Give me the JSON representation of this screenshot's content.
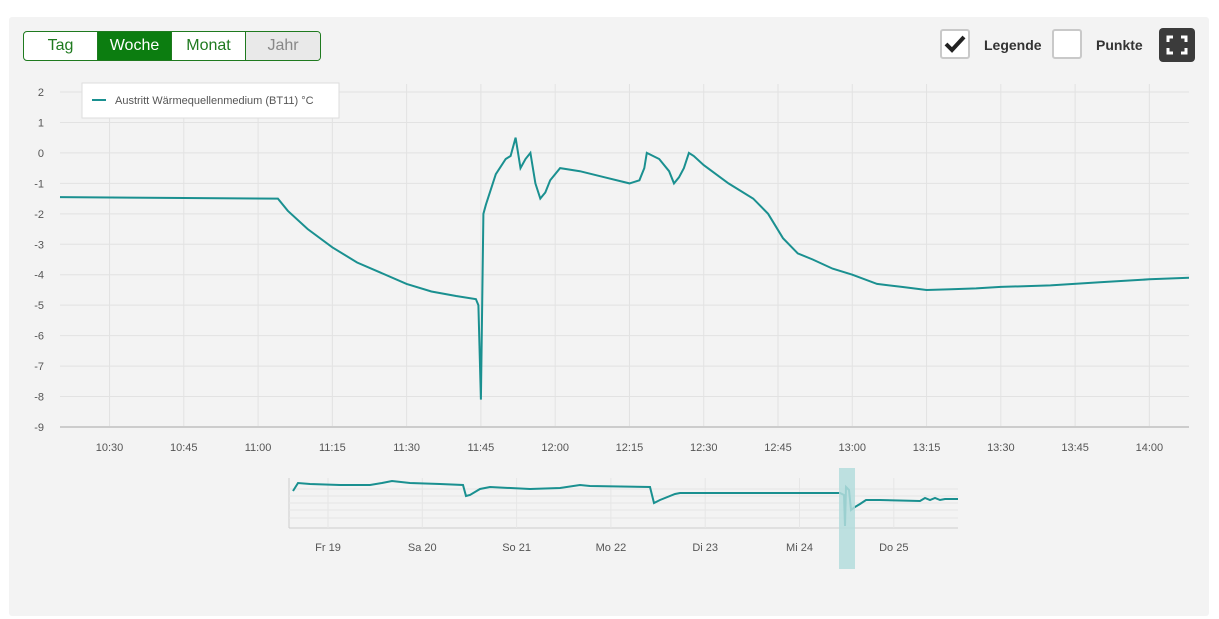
{
  "range_buttons": [
    {
      "label": "Tag",
      "state": "normal"
    },
    {
      "label": "Woche",
      "state": "active"
    },
    {
      "label": "Monat",
      "state": "normal"
    },
    {
      "label": "Jahr",
      "state": "disabled"
    }
  ],
  "options": {
    "legend_label": "Legende",
    "legend_checked": true,
    "points_label": "Punkte",
    "points_checked": false,
    "fullscreen_icon": "fullscreen-icon"
  },
  "colors": {
    "series": "#1a9090",
    "active_button": "#0c7d10",
    "navigator_mask": "#b3dcdc"
  },
  "chart_data": {
    "type": "line",
    "legend": "top-left",
    "grid": true,
    "ylim": [
      -9,
      2
    ],
    "xlim": [
      "10:20",
      "14:08"
    ],
    "y_ticks": [
      "2",
      "1",
      "0",
      "-1",
      "-2",
      "-3",
      "-4",
      "-5",
      "-6",
      "-7",
      "-8",
      "-9"
    ],
    "x_ticks": [
      "10:30",
      "10:45",
      "11:00",
      "11:15",
      "11:30",
      "11:45",
      "12:00",
      "12:15",
      "12:30",
      "12:45",
      "13:00",
      "13:15",
      "13:30",
      "13:45",
      "14:00"
    ],
    "series": [
      {
        "name": "Austritt Wärmequellenmedium (BT11) °C",
        "x": [
          "10:20",
          "10:45",
          "11:04",
          "11:06",
          "11:10",
          "11:15",
          "11:20",
          "11:30",
          "11:35",
          "11:40",
          "11:44",
          "11:44.5",
          "11:45",
          "11:45.5",
          "11:46",
          "11:48",
          "11:50",
          "11:51",
          "11:52",
          "11:53",
          "11:54",
          "11:55",
          "11:56",
          "11:57",
          "11:57.5",
          "11:58",
          "11:59",
          "12:01",
          "12:05",
          "12:10",
          "12:15",
          "12:17",
          "12:18",
          "12:18.5",
          "12:21",
          "12:23",
          "12:24",
          "12:25",
          "12:26",
          "12:27",
          "12:28",
          "12:30",
          "12:35",
          "12:40",
          "12:43",
          "12:46",
          "12:49",
          "12:52",
          "12:56",
          "13:00",
          "13:05",
          "13:10",
          "13:15",
          "13:20",
          "13:25",
          "13:30",
          "13:40",
          "13:50",
          "14:00",
          "14:08"
        ],
        "y": [
          -1.45,
          -1.48,
          -1.5,
          -1.9,
          -2.5,
          -3.1,
          -3.6,
          -4.3,
          -4.55,
          -4.7,
          -4.8,
          -5.0,
          -8.1,
          -2.0,
          -1.7,
          -0.7,
          -0.2,
          -0.1,
          0.5,
          -0.5,
          -0.2,
          0.0,
          -1.0,
          -1.5,
          -1.4,
          -1.3,
          -0.9,
          -0.5,
          -0.6,
          -0.8,
          -1.0,
          -0.9,
          -0.5,
          0.0,
          -0.2,
          -0.6,
          -1.0,
          -0.8,
          -0.5,
          0.0,
          -0.1,
          -0.4,
          -1.0,
          -1.5,
          -2.0,
          -2.8,
          -3.3,
          -3.5,
          -3.8,
          -4.0,
          -4.3,
          -4.4,
          -4.5,
          -4.48,
          -4.45,
          -4.4,
          -4.35,
          -4.25,
          -4.15,
          -4.1
        ]
      }
    ],
    "navigator": {
      "x_ticks": [
        "Fr 19",
        "Sa 20",
        "So 21",
        "Mo 22",
        "Di 23",
        "Mi 24",
        "Do 25"
      ],
      "selected_range": [
        "10:20",
        "14:08"
      ]
    }
  }
}
